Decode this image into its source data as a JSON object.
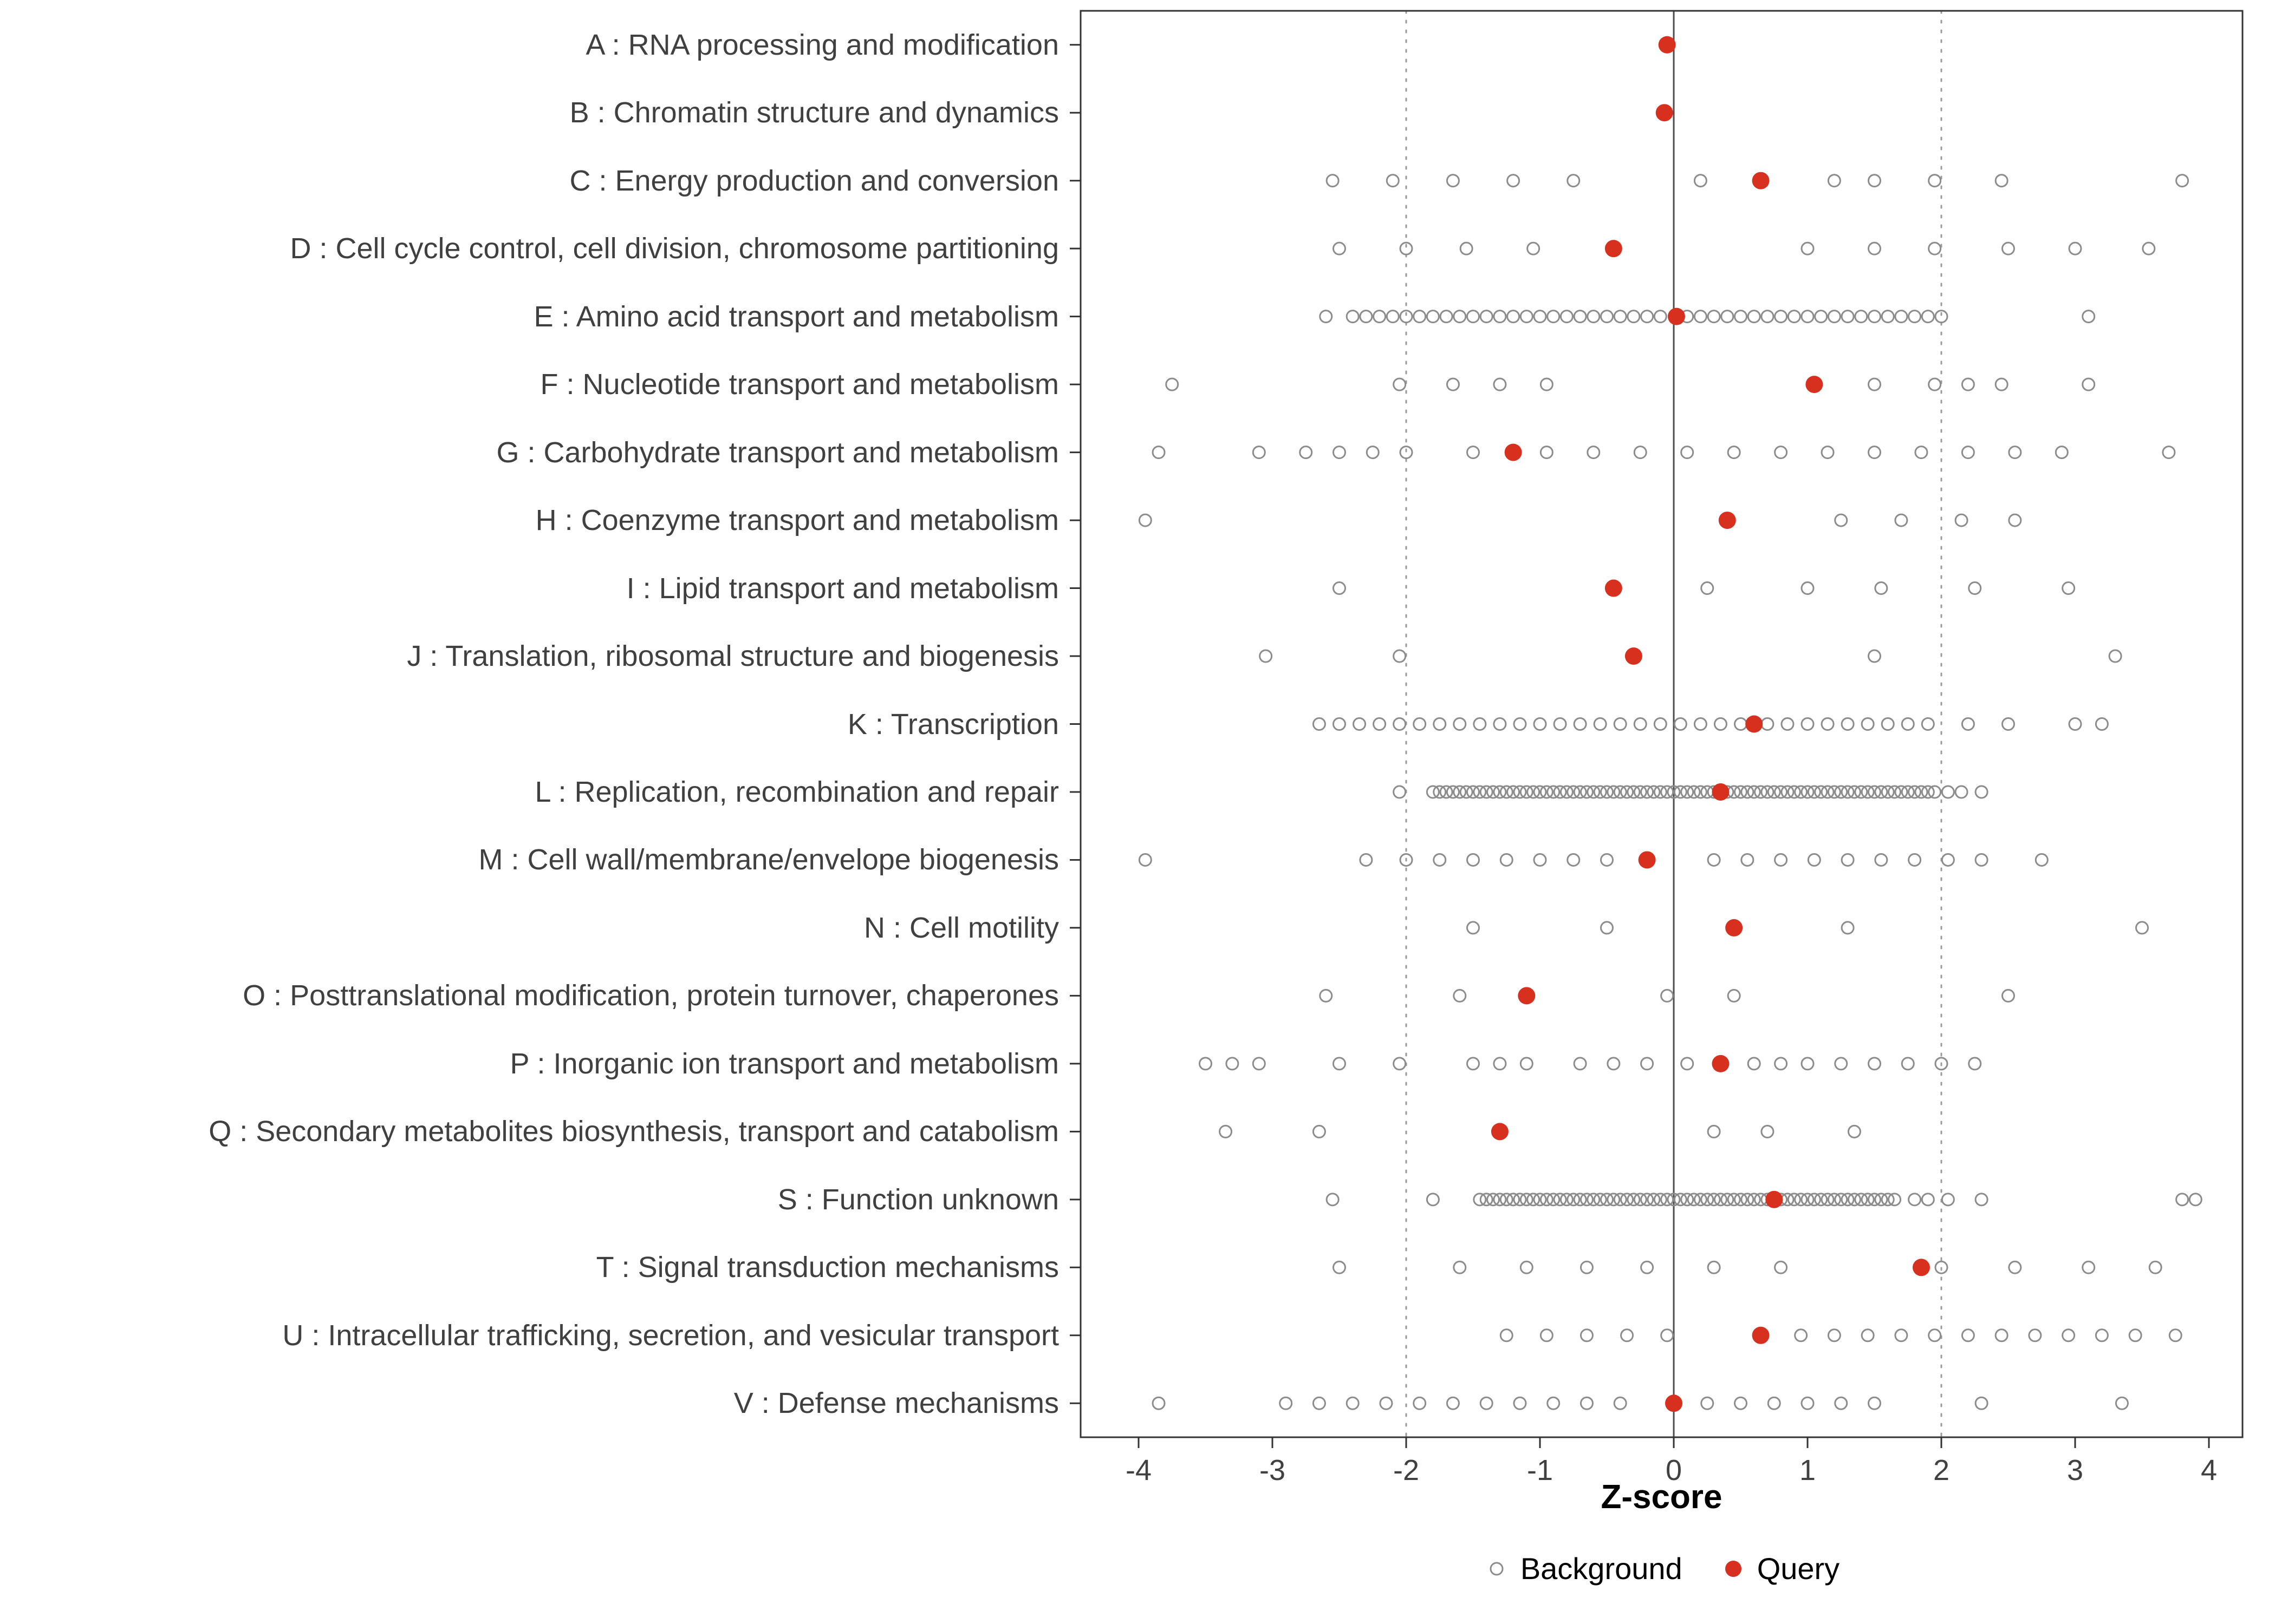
{
  "chart_data": {
    "type": "scatter",
    "title": "",
    "xlabel": "Z-score",
    "ylabel": "",
    "x_ticks": [
      -4,
      -3,
      -2,
      -1,
      0,
      1,
      2,
      3,
      4
    ],
    "xlim": [
      -4.4,
      4.25
    ],
    "grid": "off",
    "legend_position": "bottom",
    "reference_lines": {
      "solid_at": [
        0
      ],
      "dashed_at": [
        -2,
        2
      ]
    },
    "colors": {
      "background_point": "#8C8C8C",
      "query_point": "#D7301F",
      "panel_border": "#333333",
      "zero_line": "#4D4D4D",
      "dashed_line": "#999999",
      "axis_text": "#404040",
      "tick_mark": "#333333"
    },
    "series_styles": {
      "background": {
        "color": "#8C8C8C",
        "marker": "open-circle"
      },
      "query": {
        "color": "#D7301F",
        "marker": "filled-circle"
      }
    },
    "legend": {
      "items": [
        {
          "label": "Background"
        },
        {
          "label": "Query"
        }
      ]
    },
    "categories": [
      {
        "code": "A",
        "label": "A : RNA processing and modification",
        "query": -0.05,
        "background": []
      },
      {
        "code": "B",
        "label": "B : Chromatin structure and dynamics",
        "query": -0.07,
        "background": []
      },
      {
        "code": "C",
        "label": "C : Energy production and conversion",
        "query": 0.65,
        "background": [
          -2.55,
          -2.1,
          -1.65,
          -1.2,
          -0.75,
          0.2,
          1.2,
          1.5,
          1.95,
          2.45,
          3.8
        ]
      },
      {
        "code": "D",
        "label": "D : Cell cycle control, cell division, chromosome partitioning",
        "query": -0.45,
        "background": [
          -2.5,
          -2.0,
          -1.55,
          -1.05,
          1.0,
          1.5,
          1.95,
          2.5,
          3.0,
          3.55
        ]
      },
      {
        "code": "E",
        "label": "E : Amino acid transport and metabolism",
        "query": 0.02,
        "background": [
          -2.6,
          -2.4,
          -2.3,
          -2.2,
          -2.1,
          -2.0,
          -1.9,
          -1.8,
          -1.7,
          -1.6,
          -1.5,
          -1.4,
          -1.3,
          -1.2,
          -1.1,
          -1.0,
          -0.9,
          -0.8,
          -0.7,
          -0.6,
          -0.5,
          -0.4,
          -0.3,
          -0.2,
          -0.1,
          0.1,
          0.2,
          0.3,
          0.4,
          0.5,
          0.6,
          0.7,
          0.8,
          0.9,
          1.0,
          1.1,
          1.2,
          1.3,
          1.4,
          1.5,
          1.6,
          1.7,
          1.8,
          1.9,
          2.0,
          3.1
        ]
      },
      {
        "code": "F",
        "label": "F : Nucleotide transport and metabolism",
        "query": 1.05,
        "background": [
          -3.75,
          -2.05,
          -1.65,
          -1.3,
          -0.95,
          1.5,
          1.95,
          2.2,
          2.45,
          3.1
        ]
      },
      {
        "code": "G",
        "label": "G : Carbohydrate transport and metabolism",
        "query": -1.2,
        "background": [
          -3.85,
          -3.1,
          -2.75,
          -2.5,
          -2.25,
          -2.0,
          -1.5,
          -0.95,
          -0.6,
          -0.25,
          0.1,
          0.45,
          0.8,
          1.15,
          1.5,
          1.85,
          2.2,
          2.55,
          2.9,
          3.7
        ]
      },
      {
        "code": "H",
        "label": "H : Coenzyme transport and metabolism",
        "query": 0.4,
        "background": [
          -3.95,
          1.25,
          1.7,
          2.15,
          2.55
        ]
      },
      {
        "code": "I",
        "label": "I : Lipid transport and metabolism",
        "query": -0.45,
        "background": [
          -2.5,
          0.25,
          1.0,
          1.55,
          2.25,
          2.95
        ]
      },
      {
        "code": "J",
        "label": "J : Translation, ribosomal structure and biogenesis",
        "query": -0.3,
        "background": [
          -3.05,
          -2.05,
          1.5,
          3.3
        ]
      },
      {
        "code": "K",
        "label": "K : Transcription",
        "query": 0.6,
        "background": [
          -2.65,
          -2.5,
          -2.35,
          -2.2,
          -2.05,
          -1.9,
          -1.75,
          -1.6,
          -1.45,
          -1.3,
          -1.15,
          -1.0,
          -0.85,
          -0.7,
          -0.55,
          -0.4,
          -0.25,
          -0.1,
          0.05,
          0.2,
          0.35,
          0.5,
          0.7,
          0.85,
          1.0,
          1.15,
          1.3,
          1.45,
          1.6,
          1.75,
          1.9,
          2.2,
          2.5,
          3.0,
          3.2
        ]
      },
      {
        "code": "L",
        "label": "L : Replication, recombination and repair",
        "query": 0.35,
        "background": [
          -2.05,
          -1.8,
          -1.75,
          -1.7,
          -1.65,
          -1.6,
          -1.55,
          -1.5,
          -1.45,
          -1.4,
          -1.35,
          -1.3,
          -1.25,
          -1.2,
          -1.15,
          -1.1,
          -1.05,
          -1.0,
          -0.95,
          -0.9,
          -0.85,
          -0.8,
          -0.75,
          -0.7,
          -0.65,
          -0.6,
          -0.55,
          -0.5,
          -0.45,
          -0.4,
          -0.35,
          -0.3,
          -0.25,
          -0.2,
          -0.15,
          -0.1,
          -0.05,
          0.0,
          0.05,
          0.1,
          0.15,
          0.2,
          0.25,
          0.3,
          0.35,
          0.4,
          0.45,
          0.5,
          0.55,
          0.6,
          0.65,
          0.7,
          0.75,
          0.8,
          0.85,
          0.9,
          0.95,
          1.0,
          1.05,
          1.1,
          1.15,
          1.2,
          1.25,
          1.3,
          1.35,
          1.4,
          1.45,
          1.5,
          1.55,
          1.6,
          1.65,
          1.7,
          1.75,
          1.8,
          1.85,
          1.9,
          1.95,
          2.05,
          2.15,
          2.3
        ]
      },
      {
        "code": "M",
        "label": "M : Cell wall/membrane/envelope biogenesis",
        "query": -0.2,
        "background": [
          -3.95,
          -2.3,
          -2.0,
          -1.75,
          -1.5,
          -1.25,
          -1.0,
          -0.75,
          -0.5,
          0.3,
          0.55,
          0.8,
          1.05,
          1.3,
          1.55,
          1.8,
          2.05,
          2.3,
          2.75
        ]
      },
      {
        "code": "N",
        "label": "N : Cell motility",
        "query": 0.45,
        "background": [
          -1.5,
          -0.5,
          1.3,
          3.5
        ]
      },
      {
        "code": "O",
        "label": "O : Posttranslational modification, protein turnover, chaperones",
        "query": -1.1,
        "background": [
          -2.6,
          -1.6,
          -0.05,
          0.45,
          2.5
        ]
      },
      {
        "code": "P",
        "label": "P : Inorganic ion transport and metabolism",
        "query": 0.35,
        "background": [
          -3.5,
          -3.3,
          -3.1,
          -2.5,
          -2.05,
          -1.5,
          -1.3,
          -1.1,
          -0.7,
          -0.45,
          -0.2,
          0.1,
          0.6,
          0.8,
          1.0,
          1.25,
          1.5,
          1.75,
          2.0,
          2.25
        ]
      },
      {
        "code": "Q",
        "label": "Q : Secondary metabolites biosynthesis, transport and catabolism",
        "query": -1.3,
        "background": [
          -3.35,
          -2.65,
          0.3,
          0.7,
          1.35
        ]
      },
      {
        "code": "S",
        "label": "S : Function unknown",
        "query": 0.75,
        "background": [
          -2.55,
          -1.8,
          -1.45,
          -1.4,
          -1.35,
          -1.3,
          -1.25,
          -1.2,
          -1.15,
          -1.1,
          -1.05,
          -1.0,
          -0.95,
          -0.9,
          -0.85,
          -0.8,
          -0.75,
          -0.7,
          -0.65,
          -0.6,
          -0.55,
          -0.5,
          -0.45,
          -0.4,
          -0.35,
          -0.3,
          -0.25,
          -0.2,
          -0.15,
          -0.1,
          -0.05,
          0.0,
          0.05,
          0.1,
          0.15,
          0.2,
          0.25,
          0.3,
          0.35,
          0.4,
          0.45,
          0.5,
          0.55,
          0.6,
          0.65,
          0.7,
          0.75,
          0.8,
          0.85,
          0.9,
          0.95,
          1.0,
          1.05,
          1.1,
          1.15,
          1.2,
          1.25,
          1.3,
          1.35,
          1.4,
          1.45,
          1.5,
          1.55,
          1.6,
          1.65,
          1.8,
          1.9,
          2.05,
          2.3,
          3.8,
          3.9
        ]
      },
      {
        "code": "T",
        "label": "T : Signal transduction mechanisms",
        "query": 1.85,
        "background": [
          -2.5,
          -1.6,
          -1.1,
          -0.65,
          -0.2,
          0.3,
          0.8,
          2.0,
          2.55,
          3.1,
          3.6
        ]
      },
      {
        "code": "U",
        "label": "U : Intracellular trafficking, secretion, and vesicular transport",
        "query": 0.65,
        "background": [
          -1.25,
          -0.95,
          -0.65,
          -0.35,
          -0.05,
          0.95,
          1.2,
          1.45,
          1.7,
          1.95,
          2.2,
          2.45,
          2.7,
          2.95,
          3.2,
          3.45,
          3.75
        ]
      },
      {
        "code": "V",
        "label": "V : Defense mechanisms",
        "query": 0.0,
        "background": [
          -3.85,
          -2.9,
          -2.65,
          -2.4,
          -2.15,
          -1.9,
          -1.65,
          -1.4,
          -1.15,
          -0.9,
          -0.65,
          -0.4,
          0.25,
          0.5,
          0.75,
          1.0,
          1.25,
          1.5,
          2.3,
          3.35
        ]
      }
    ]
  }
}
